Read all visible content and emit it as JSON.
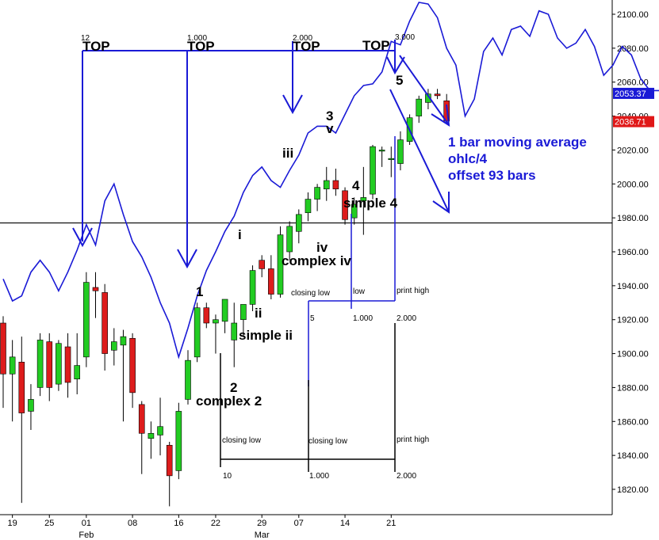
{
  "chart_data": {
    "type": "candlestick",
    "y_ticks": [
      1820,
      1840,
      1860,
      1880,
      1900,
      1920,
      1940,
      1960,
      1980,
      2000,
      2020,
      2040,
      2060,
      2080,
      2100
    ],
    "ylim": [
      1808,
      2110
    ],
    "x_tick_labels": [
      "19",
      "25",
      "01",
      "08",
      "16",
      "22",
      "29",
      "07",
      "14",
      "21"
    ],
    "x_tick_slots": [
      1,
      5,
      9,
      14,
      19,
      23,
      28,
      32,
      37,
      42
    ],
    "month_labels": [
      {
        "label": "Feb",
        "slot": 9
      },
      {
        "label": "Mar",
        "slot": 28
      }
    ],
    "price_tags": [
      {
        "value": 2053.37,
        "label": "2053.37",
        "color": "#1a1ad6"
      },
      {
        "value": 2036.71,
        "label": "2036.71",
        "color": "#e01818"
      }
    ],
    "horizontal_line": 1977,
    "candles": [
      {
        "o": 1918,
        "h": 1922,
        "l": 1868,
        "c": 1888
      },
      {
        "o": 1888,
        "h": 1908,
        "l": 1860,
        "c": 1898
      },
      {
        "o": 1895,
        "h": 1910,
        "l": 1812,
        "c": 1865
      },
      {
        "o": 1866,
        "h": 1882,
        "l": 1855,
        "c": 1873
      },
      {
        "o": 1880,
        "h": 1912,
        "l": 1875,
        "c": 1908
      },
      {
        "o": 1907,
        "h": 1912,
        "l": 1872,
        "c": 1880
      },
      {
        "o": 1882,
        "h": 1908,
        "l": 1878,
        "c": 1906
      },
      {
        "o": 1904,
        "h": 1912,
        "l": 1874,
        "c": 1883
      },
      {
        "o": 1885,
        "h": 1912,
        "l": 1876,
        "c": 1893
      },
      {
        "o": 1898,
        "h": 1948,
        "l": 1892,
        "c": 1942
      },
      {
        "o": 1939,
        "h": 1948,
        "l": 1921,
        "c": 1937
      },
      {
        "o": 1936,
        "h": 1941,
        "l": 1890,
        "c": 1900
      },
      {
        "o": 1902,
        "h": 1915,
        "l": 1893,
        "c": 1907
      },
      {
        "o": 1905,
        "h": 1914,
        "l": 1860,
        "c": 1910
      },
      {
        "o": 1909,
        "h": 1912,
        "l": 1868,
        "c": 1877
      },
      {
        "o": 1870,
        "h": 1872,
        "l": 1829,
        "c": 1853
      },
      {
        "o": 1850,
        "h": 1860,
        "l": 1838,
        "c": 1853
      },
      {
        "o": 1852,
        "h": 1874,
        "l": 1840,
        "c": 1857
      },
      {
        "o": 1846,
        "h": 1848,
        "l": 1810,
        "c": 1828
      },
      {
        "o": 1831,
        "h": 1871,
        "l": 1826,
        "c": 1866
      },
      {
        "o": 1873,
        "h": 1902,
        "l": 1870,
        "c": 1896
      },
      {
        "o": 1898,
        "h": 1930,
        "l": 1895,
        "c": 1927
      },
      {
        "o": 1927,
        "h": 1930,
        "l": 1915,
        "c": 1918
      },
      {
        "o": 1918,
        "h": 1923,
        "l": 1900,
        "c": 1920
      },
      {
        "o": 1919,
        "h": 1932,
        "l": 1912,
        "c": 1932
      },
      {
        "o": 1908,
        "h": 1930,
        "l": 1892,
        "c": 1918
      },
      {
        "o": 1920,
        "h": 1927,
        "l": 1910,
        "c": 1929
      },
      {
        "o": 1929,
        "h": 1952,
        "l": 1925,
        "c": 1949
      },
      {
        "o": 1955,
        "h": 1958,
        "l": 1945,
        "c": 1950
      },
      {
        "o": 1950,
        "h": 1958,
        "l": 1932,
        "c": 1935
      },
      {
        "o": 1935,
        "h": 1975,
        "l": 1933,
        "c": 1970
      },
      {
        "o": 1960,
        "h": 1978,
        "l": 1955,
        "c": 1975
      },
      {
        "o": 1972,
        "h": 1985,
        "l": 1965,
        "c": 1982
      },
      {
        "o": 1983,
        "h": 1995,
        "l": 1978,
        "c": 1991
      },
      {
        "o": 1991,
        "h": 2000,
        "l": 1984,
        "c": 1998
      },
      {
        "o": 1997,
        "h": 2010,
        "l": 1990,
        "c": 2002
      },
      {
        "o": 2002,
        "h": 2009,
        "l": 1993,
        "c": 1997
      },
      {
        "o": 1996,
        "h": 1998,
        "l": 1976,
        "c": 1979
      },
      {
        "o": 1980,
        "h": 1992,
        "l": 1976,
        "c": 1988
      },
      {
        "o": 1990,
        "h": 2010,
        "l": 1970,
        "c": 1992
      },
      {
        "o": 1994,
        "h": 2023,
        "l": 1991,
        "c": 2022
      },
      {
        "o": 2020,
        "h": 2022,
        "l": 2010,
        "c": 2020
      },
      {
        "o": 2015,
        "h": 2022,
        "l": 2004,
        "c": 2015
      },
      {
        "o": 2012,
        "h": 2031,
        "l": 2008,
        "c": 2026
      },
      {
        "o": 2025,
        "h": 2041,
        "l": 2023,
        "c": 2039
      },
      {
        "o": 2040,
        "h": 2052,
        "l": 2036,
        "c": 2050
      },
      {
        "o": 2048,
        "h": 2056,
        "l": 2044,
        "c": 2053
      },
      {
        "o": 2053,
        "h": 2056,
        "l": 2050,
        "c": 2052
      },
      {
        "o": 2049,
        "h": 2053,
        "l": 2036,
        "c": 2037
      }
    ],
    "moving_average": {
      "name": "1 bar moving average ohlc/4 offset 93 bars",
      "values": [
        1944,
        1931,
        1934,
        1948,
        1955,
        1948,
        1937,
        1948,
        1961,
        1976,
        1964,
        1990,
        2000,
        1982,
        1966,
        1957,
        1945,
        1930,
        1918,
        1898,
        1915,
        1934,
        1949,
        1960,
        1972,
        1981,
        1995,
        2005,
        2010,
        2002,
        1998,
        2008,
        2017,
        2030,
        2034,
        2034,
        2030,
        2041,
        2052,
        2058,
        2059,
        2066,
        2084,
        2082,
        2096,
        2107,
        2106,
        2098,
        2080,
        2070,
        2040,
        2050,
        2078,
        2086,
        2076,
        2091,
        2093,
        2087,
        2102,
        2100,
        2086,
        2080,
        2083,
        2091,
        2081,
        2064,
        2070,
        2081,
        2076,
        2062,
        2055,
        2055
      ]
    }
  },
  "annotations": {
    "top_labels": [
      "TOP",
      "TOP",
      "TOP",
      "TOP"
    ],
    "cycle_numbers": [
      "12",
      "1.000",
      "2.000",
      "3.000"
    ],
    "wave_1": "1",
    "wave_2": "2",
    "wave_2_note": "complex 2",
    "wave_i": "i",
    "wave_ii": "ii",
    "wave_ii_note": "simple ii",
    "wave_iii": "iii",
    "wave_iv": "iv",
    "wave_iv_note": "complex iv",
    "wave_3": "3",
    "wave_v": "v",
    "wave_4": "4",
    "wave_4_note": "simple 4",
    "wave_5": "5",
    "ma_line1": "1 bar moving average",
    "ma_line2": "ohlc/4",
    "ma_line3": "offset 93 bars",
    "upper_box": {
      "closing_low": "closing low",
      "low": "low",
      "print_high": "print high",
      "n5": "5",
      "n1000": "1.000",
      "n2000": "2.000"
    },
    "lower_box": {
      "closing_low_a": "closing low",
      "closing_low_b": "closing low",
      "print_high": "print high",
      "n10": "10",
      "n1000": "1.000",
      "n2000": "2.000"
    }
  },
  "colors": {
    "up": "#22cc22",
    "down": "#dd1c1c",
    "ma": "#1a1ad6",
    "text": "#000000"
  }
}
